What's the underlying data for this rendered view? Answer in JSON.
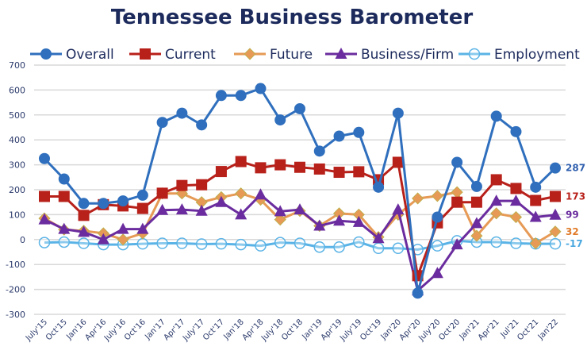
{
  "chart_data": {
    "type": "line",
    "title": "Tennessee Business Barometer",
    "xlabel": "",
    "ylabel": "",
    "ylim": [
      -300,
      700
    ],
    "yticks": [
      700,
      600,
      500,
      400,
      300,
      200,
      100,
      0,
      -100,
      -200,
      -300
    ],
    "grid": true,
    "legend_position": "top",
    "categories": [
      "July'15",
      "Oct'15",
      "Jan'16",
      "Apr'16",
      "July'16",
      "Oct'16",
      "Jan'17",
      "Apr'17",
      "July'17",
      "Oct'17",
      "Jan'18",
      "Apr'18",
      "July'18",
      "Oct'18",
      "Jan'19",
      "Apr'19",
      "July'19",
      "Oct'19",
      "Jan'20",
      "Apr'20",
      "July'20",
      "Oct'20",
      "Jan'21",
      "Apr'21",
      "Jul'21",
      "Oct'21",
      "Jan'22"
    ],
    "series": [
      {
        "name": "Overall",
        "color": "#2f6fbd",
        "marker": "circle",
        "end_label": "287",
        "values": [
          325,
          243,
          145,
          145,
          155,
          178,
          470,
          507,
          460,
          578,
          578,
          606,
          480,
          525,
          355,
          415,
          430,
          210,
          507,
          -215,
          90,
          310,
          213,
          495,
          433,
          210,
          287
        ]
      },
      {
        "name": "Current",
        "color": "#b8201a",
        "marker": "square",
        "end_label": "173",
        "values": [
          173,
          173,
          97,
          140,
          135,
          125,
          186,
          217,
          220,
          273,
          313,
          288,
          300,
          290,
          283,
          270,
          272,
          240,
          310,
          -145,
          67,
          150,
          150,
          240,
          205,
          157,
          173
        ]
      },
      {
        "name": "Future",
        "color": "#e69a55",
        "marker": "diamond",
        "end_label": "32",
        "values": [
          85,
          40,
          35,
          25,
          0,
          25,
          185,
          185,
          150,
          170,
          185,
          160,
          80,
          115,
          55,
          105,
          100,
          10,
          100,
          165,
          175,
          190,
          15,
          105,
          90,
          -15,
          32
        ]
      },
      {
        "name": "Business/Firm",
        "color": "#6a2c9e",
        "marker": "triangle",
        "end_label": "99",
        "values": [
          80,
          42,
          30,
          0,
          42,
          42,
          118,
          120,
          115,
          150,
          100,
          180,
          113,
          120,
          55,
          75,
          70,
          5,
          120,
          -205,
          -135,
          -20,
          65,
          155,
          155,
          90,
          99
        ]
      },
      {
        "name": "Employment",
        "color": "#5ab3e6",
        "marker": "open-circle",
        "end_label": "-17",
        "values": [
          -12,
          -10,
          -15,
          -20,
          -20,
          -17,
          -15,
          -15,
          -18,
          -17,
          -20,
          -25,
          -12,
          -15,
          -30,
          -30,
          -10,
          -35,
          -35,
          -40,
          -25,
          -5,
          -10,
          -10,
          -15,
          -17,
          -17
        ]
      }
    ]
  }
}
